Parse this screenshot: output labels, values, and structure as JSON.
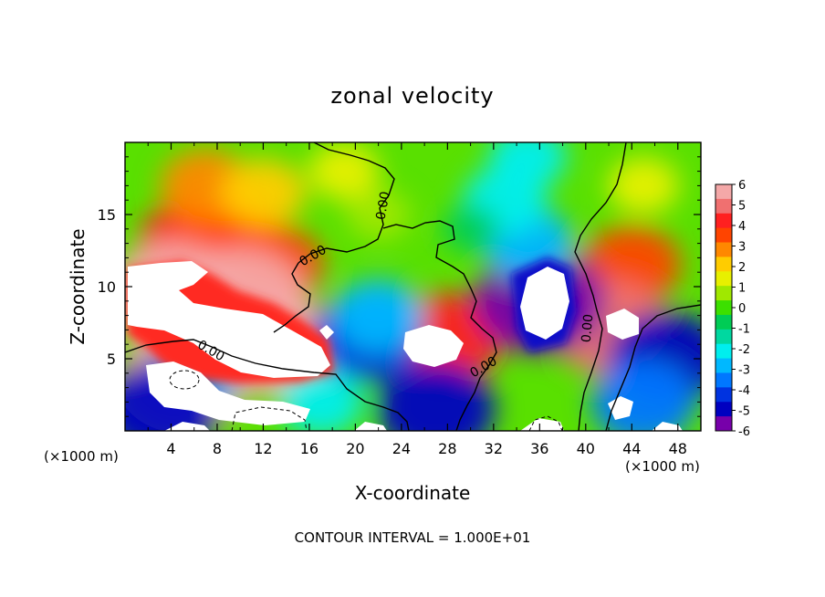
{
  "chart_data": {
    "type": "heatmap",
    "title": "zonal velocity",
    "xlabel": "X-coordinate",
    "ylabel": "Z-coordinate",
    "x_unit_left": "(×1000 m)",
    "x_unit_right": "(×1000 m)",
    "xlim": [
      0,
      50
    ],
    "ylim": [
      0,
      20
    ],
    "x_ticks": [
      4,
      8,
      12,
      16,
      20,
      24,
      28,
      32,
      36,
      40,
      44,
      48
    ],
    "y_ticks": [
      5,
      10,
      15
    ],
    "footer": "CONTOUR INTERVAL = 1.000E+01",
    "colorbar": {
      "ticks": [
        6,
        5,
        4,
        3,
        2,
        1,
        0,
        -1,
        -2,
        -3,
        -4,
        -5,
        -6
      ],
      "colors": [
        "#f4a8a8",
        "#f07070",
        "#ff2020",
        "#ff4400",
        "#ff8800",
        "#ffcc00",
        "#e8f000",
        "#a0e800",
        "#3ce000",
        "#00cc55",
        "#00d8a0",
        "#00eeee",
        "#00b8ff",
        "#0077ff",
        "#0033e0",
        "#0000c0",
        "#7700aa"
      ]
    },
    "contour_labels": [
      "0.00",
      "0.00",
      "0.00",
      "0.00",
      "0.00"
    ],
    "anomalies": [
      {
        "x": 6,
        "z": 13,
        "v": 4.5
      },
      {
        "x": 9,
        "z": 13.5,
        "v": 4
      },
      {
        "x": 13,
        "z": 11.5,
        "v": 3.5
      },
      {
        "x": 7,
        "z": 17,
        "v": 3
      },
      {
        "x": 12,
        "z": 16.5,
        "v": 2.5
      },
      {
        "x": 10,
        "z": 9,
        "v": 6
      },
      {
        "x": 4,
        "z": 9.5,
        "v": 6
      },
      {
        "x": 13,
        "z": 6,
        "v": 6
      },
      {
        "x": 5,
        "z": 3.5,
        "v": 6
      },
      {
        "x": 28,
        "z": 6.5,
        "v": 4.5
      },
      {
        "x": 44,
        "z": 11.5,
        "v": 3.5
      },
      {
        "x": 42,
        "z": 7.2,
        "v": 5
      },
      {
        "x": 36,
        "z": 9,
        "v": -6
      },
      {
        "x": 35,
        "z": 13,
        "v": -3
      },
      {
        "x": 33,
        "z": 16,
        "v": -2.5
      },
      {
        "x": 35,
        "z": 19,
        "v": -2
      },
      {
        "x": 21,
        "z": 6.5,
        "v": -4.5
      },
      {
        "x": 22,
        "z": 8,
        "v": -3
      },
      {
        "x": 47,
        "z": 5,
        "v": -5
      },
      {
        "x": 45,
        "z": 2,
        "v": -4
      },
      {
        "x": 27,
        "z": 1.5,
        "v": -5
      },
      {
        "x": 6,
        "z": 4,
        "v": -3
      },
      {
        "x": 3,
        "z": 1.5,
        "v": -5
      },
      {
        "x": 17,
        "z": 2,
        "v": -2.5
      },
      {
        "x": 30,
        "z": 14,
        "v": -0.5
      },
      {
        "x": 22,
        "z": 15,
        "v": 1
      },
      {
        "x": 19,
        "z": 18,
        "v": 1.5
      },
      {
        "x": 45,
        "z": 17,
        "v": 1.5
      }
    ]
  }
}
